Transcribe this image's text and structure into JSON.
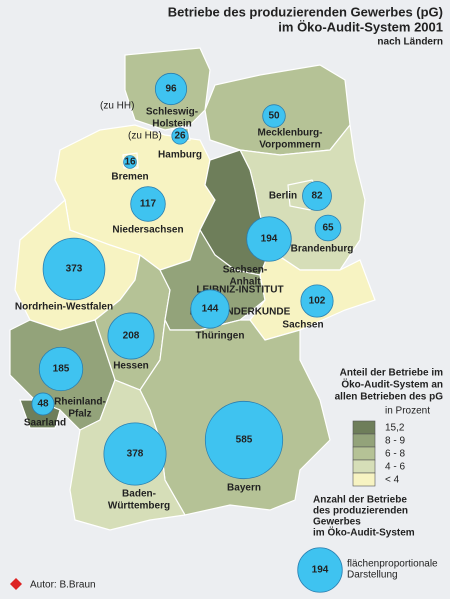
{
  "title": [
    "Betriebe des produzierenden Gewerbes (pG)",
    "im Öko-Audit-System 2001"
  ],
  "subtitle": "nach Ländern",
  "notes": [
    "(zu HH)",
    "(zu HB)"
  ],
  "states": [
    {
      "label": [
        "Schleswig-",
        "Holstein"
      ],
      "value": 96,
      "color": "#b5c296"
    },
    {
      "label": [
        "Hamburg"
      ],
      "value": 26,
      "color": "#b5c296"
    },
    {
      "label": [
        "Bremen"
      ],
      "value": 16,
      "color": "#f7f3c2"
    },
    {
      "label": [
        "Mecklenburg-",
        "Vorpommern"
      ],
      "value": 50,
      "color": "#b5c296"
    },
    {
      "label": [
        "Niedersachsen"
      ],
      "value": 117,
      "color": "#f7f3c2"
    },
    {
      "label": [
        "Berlin"
      ],
      "value": 82,
      "color": "#d6deb8"
    },
    {
      "label": [
        "Brandenburg"
      ],
      "value": 65,
      "color": "#d6deb8"
    },
    {
      "label": [
        "Sachsen-",
        "Anhalt"
      ],
      "value": 194,
      "color": "#6e7e5a"
    },
    {
      "label": [
        "Nordrhein-Westfalen"
      ],
      "value": 373,
      "color": "#f7f3c2"
    },
    {
      "label": [
        "Thüringen"
      ],
      "value": 144,
      "color": "#93a37a"
    },
    {
      "label": [
        "Sachsen"
      ],
      "value": 102,
      "color": "#f7f3c2"
    },
    {
      "label": [
        "Hessen"
      ],
      "value": 208,
      "color": "#b5c296"
    },
    {
      "label": [
        "Rheinland-",
        "Pfalz"
      ],
      "value": 185,
      "color": "#93a37a"
    },
    {
      "label": [
        "Saarland"
      ],
      "value": 48,
      "color": "#6e7e5a"
    },
    {
      "label": [
        "Baden-",
        "Württemberg"
      ],
      "value": 378,
      "color": "#d6deb8"
    },
    {
      "label": [
        "Bayern"
      ],
      "value": 585,
      "color": "#b5c296"
    }
  ],
  "legend_share": {
    "title": [
      "Anteil der Betriebe im",
      "Öko-Audit-System an",
      "allen Betrieben des pG"
    ],
    "unit": "in Prozent",
    "classes": [
      {
        "label": "15,2",
        "color": "#6e7e5a"
      },
      {
        "label": "8 - 9",
        "color": "#93a37a"
      },
      {
        "label": "6 - 8",
        "color": "#b5c296"
      },
      {
        "label": "4 - 6",
        "color": "#d6deb8"
      },
      {
        "label": "< 4",
        "color": "#f7f3c2"
      }
    ]
  },
  "legend_count": {
    "title": [
      "Anzahl der Betriebe",
      "des produzierenden",
      "Gewerbes",
      "im Öko-Audit-System"
    ],
    "example": 194,
    "note": [
      "flächenproportionale",
      "Darstellung"
    ]
  },
  "watermark": [
    "LEIBNIZ-INSTITUT",
    "FÜR LÄNDERKUNDE"
  ],
  "author": "Autor: B.Braun",
  "circle_color": "#3fc3f0"
}
